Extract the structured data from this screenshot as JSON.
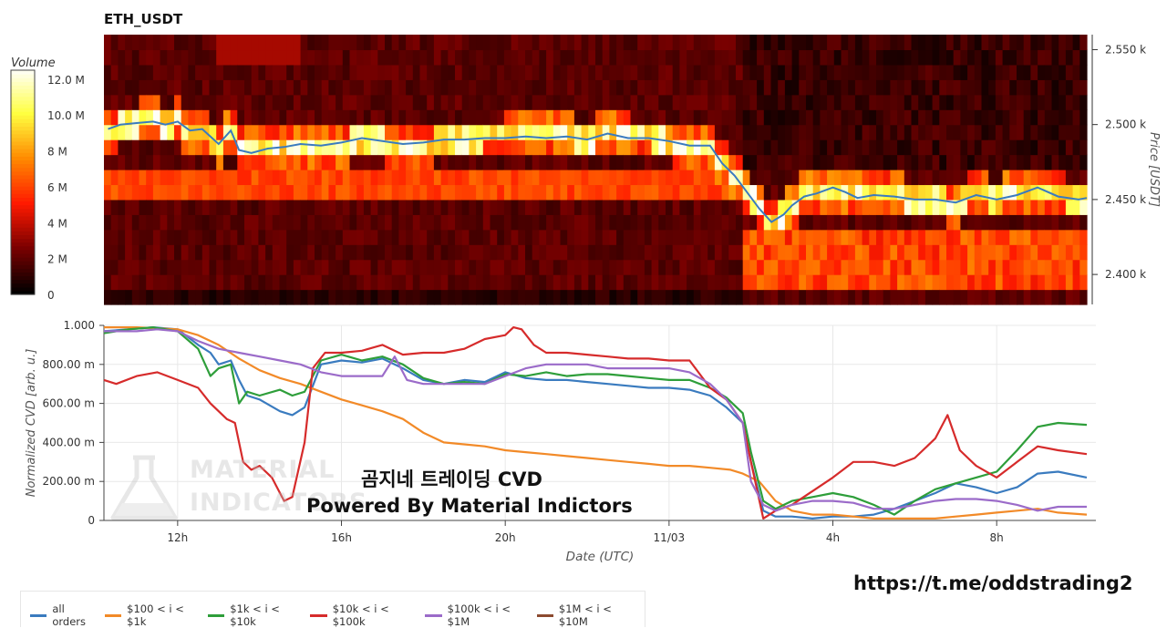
{
  "header": {
    "title": "ETH_USDT"
  },
  "colorbar": {
    "label": "Volume",
    "ticks": [
      "12.0 M",
      "10.0 M",
      "8 M",
      "6 M",
      "4 M",
      "2 M",
      "0"
    ],
    "tick_values": [
      12,
      10,
      8,
      6,
      4,
      2,
      0
    ]
  },
  "overlay": {
    "line1": "곰지네 트레이딩 CVD",
    "line2": "Powered By Material Indictors"
  },
  "watermark": {
    "line1": "MATERIAL",
    "line2": "INDICATORS"
  },
  "link": {
    "text": "https://t.me/oddstrading2"
  },
  "chart_data": [
    {
      "type": "heatmap",
      "title": "ETH_USDT",
      "ylabel": "Price [USDT]",
      "colorbar_label": "Volume",
      "y_ticks": [
        "2.550 k",
        "2.500 k",
        "2.450 k",
        "2.400 k"
      ],
      "y_tick_values": [
        2550,
        2500,
        2450,
        2400
      ],
      "ylim": [
        2380,
        2560
      ],
      "colorscale": [
        "#000000",
        "#7a0000",
        "#ff1a00",
        "#ff8a00",
        "#ffff40",
        "#ffffff"
      ],
      "zlim": [
        0,
        12
      ],
      "price_series": {
        "name": "",
        "color": "#3a7bbf",
        "x": [
          10.3,
          10.6,
          11.0,
          11.4,
          11.7,
          12.0,
          12.3,
          12.6,
          13.0,
          13.3,
          13.5,
          13.8,
          14.2,
          14.6,
          15.0,
          15.5,
          16.0,
          16.5,
          17.0,
          17.5,
          18.0,
          18.5,
          19.0,
          19.5,
          20.0,
          20.5,
          21.0,
          21.5,
          22.0,
          22.5,
          23.0,
          23.5,
          24.0,
          24.5,
          25.0,
          25.3,
          25.6,
          25.9,
          26.2,
          26.5,
          26.8,
          27.0,
          27.3,
          27.6,
          28.0,
          28.3,
          28.6,
          29.0,
          29.5,
          30.0,
          30.5,
          31.0,
          31.5,
          32.0,
          32.5,
          33.0,
          33.5,
          34.0,
          34.2
        ],
        "y": [
          2497,
          2500,
          2501,
          2502,
          2500,
          2502,
          2496,
          2497,
          2487,
          2496,
          2483,
          2481,
          2484,
          2485,
          2487,
          2486,
          2488,
          2491,
          2489,
          2487,
          2488,
          2490,
          2490,
          2491,
          2491,
          2492,
          2491,
          2492,
          2490,
          2494,
          2491,
          2491,
          2489,
          2486,
          2486,
          2474,
          2466,
          2455,
          2444,
          2435,
          2440,
          2446,
          2452,
          2454,
          2458,
          2455,
          2451,
          2453,
          2452,
          2450,
          2450,
          2448,
          2453,
          2450,
          2453,
          2458,
          2452,
          2450,
          2451
        ]
      }
    },
    {
      "type": "line",
      "xlabel": "Date (UTC)",
      "ylabel": "Normalized CVD [arb. u.]",
      "x_ticks": [
        "12h",
        "16h",
        "20h",
        "11/03",
        "4h",
        "8h"
      ],
      "x_tick_values": [
        12,
        16,
        20,
        24,
        28,
        32
      ],
      "xlim": [
        10.2,
        34.2
      ],
      "y_ticks": [
        "1.000",
        "800.00 m",
        "600.00 m",
        "400.00 m",
        "200.00 m",
        "0"
      ],
      "y_tick_values": [
        1.0,
        0.8,
        0.6,
        0.4,
        0.2,
        0.0
      ],
      "ylim": [
        0,
        1.0
      ],
      "legend_position": "bottom",
      "series": [
        {
          "name": "all orders",
          "color": "#3a7bbf",
          "x": [
            10.2,
            10.8,
            11.4,
            12.0,
            12.5,
            12.8,
            13.0,
            13.3,
            13.5,
            13.7,
            14.0,
            14.5,
            14.8,
            15.1,
            15.5,
            16.0,
            16.5,
            17.0,
            17.5,
            18.0,
            18.5,
            19.0,
            19.5,
            20.0,
            20.5,
            21.0,
            21.5,
            22.0,
            22.5,
            23.0,
            23.5,
            24.0,
            24.5,
            25.0,
            25.4,
            25.8,
            26.0,
            26.3,
            26.6,
            27.0,
            27.5,
            28.0,
            28.5,
            29.0,
            29.5,
            30.0,
            30.5,
            31.0,
            31.5,
            32.0,
            32.5,
            33.0,
            33.5,
            34.2
          ],
          "y": [
            0.97,
            0.98,
            0.99,
            0.98,
            0.9,
            0.86,
            0.8,
            0.82,
            0.72,
            0.64,
            0.62,
            0.56,
            0.54,
            0.58,
            0.8,
            0.82,
            0.81,
            0.83,
            0.78,
            0.72,
            0.7,
            0.72,
            0.71,
            0.76,
            0.73,
            0.72,
            0.72,
            0.71,
            0.7,
            0.69,
            0.68,
            0.68,
            0.67,
            0.64,
            0.58,
            0.5,
            0.3,
            0.05,
            0.02,
            0.02,
            0.01,
            0.02,
            0.02,
            0.03,
            0.06,
            0.1,
            0.14,
            0.19,
            0.17,
            0.14,
            0.17,
            0.24,
            0.25,
            0.22
          ]
        },
        {
          "name": "$100 < i < $1k",
          "color": "#f28a28",
          "x": [
            10.2,
            11.0,
            12.0,
            12.5,
            13.0,
            13.5,
            14.0,
            14.5,
            15.0,
            15.5,
            16.0,
            16.5,
            17.0,
            17.5,
            18.0,
            18.5,
            19.0,
            19.5,
            20.0,
            20.5,
            21.0,
            21.5,
            22.0,
            22.5,
            23.0,
            23.5,
            24.0,
            24.5,
            25.0,
            25.5,
            25.8,
            26.2,
            26.6,
            27.0,
            27.5,
            28.0,
            28.5,
            29.0,
            29.5,
            30.0,
            30.5,
            31.0,
            31.5,
            32.0,
            32.5,
            33.0,
            33.5,
            34.2
          ],
          "y": [
            0.99,
            0.99,
            0.98,
            0.95,
            0.9,
            0.83,
            0.77,
            0.73,
            0.7,
            0.66,
            0.62,
            0.59,
            0.56,
            0.52,
            0.45,
            0.4,
            0.39,
            0.38,
            0.36,
            0.35,
            0.34,
            0.33,
            0.32,
            0.31,
            0.3,
            0.29,
            0.28,
            0.28,
            0.27,
            0.26,
            0.24,
            0.2,
            0.1,
            0.05,
            0.03,
            0.03,
            0.02,
            0.01,
            0.01,
            0.01,
            0.01,
            0.02,
            0.03,
            0.04,
            0.05,
            0.06,
            0.04,
            0.03
          ]
        },
        {
          "name": "$1k < i < $10k",
          "color": "#2e9e3a",
          "x": [
            10.2,
            10.8,
            11.4,
            12.0,
            12.5,
            12.8,
            13.0,
            13.3,
            13.5,
            13.7,
            14.0,
            14.5,
            14.8,
            15.1,
            15.5,
            16.0,
            16.5,
            17.0,
            17.5,
            18.0,
            18.5,
            19.0,
            19.5,
            20.0,
            20.5,
            21.0,
            21.5,
            22.0,
            22.5,
            23.0,
            23.5,
            24.0,
            24.5,
            25.0,
            25.4,
            25.8,
            26.0,
            26.3,
            26.6,
            27.0,
            27.5,
            28.0,
            28.5,
            29.0,
            29.5,
            30.0,
            30.5,
            31.0,
            31.5,
            32.0,
            32.5,
            33.0,
            33.5,
            34.2
          ],
          "y": [
            0.96,
            0.98,
            0.99,
            0.97,
            0.88,
            0.74,
            0.78,
            0.8,
            0.6,
            0.66,
            0.64,
            0.67,
            0.64,
            0.66,
            0.82,
            0.85,
            0.82,
            0.84,
            0.8,
            0.73,
            0.7,
            0.71,
            0.7,
            0.75,
            0.74,
            0.76,
            0.74,
            0.75,
            0.75,
            0.74,
            0.73,
            0.72,
            0.72,
            0.68,
            0.63,
            0.55,
            0.35,
            0.1,
            0.06,
            0.1,
            0.12,
            0.14,
            0.12,
            0.08,
            0.03,
            0.1,
            0.16,
            0.19,
            0.22,
            0.25,
            0.36,
            0.48,
            0.5,
            0.49
          ]
        },
        {
          "name": "$10k < i < $100k",
          "color": "#d62b2b",
          "x": [
            10.2,
            10.5,
            11.0,
            11.5,
            12.0,
            12.5,
            12.8,
            13.2,
            13.4,
            13.6,
            13.8,
            14.0,
            14.3,
            14.6,
            14.8,
            15.1,
            15.3,
            15.6,
            16.0,
            16.5,
            17.0,
            17.5,
            18.0,
            18.5,
            19.0,
            19.5,
            20.0,
            20.2,
            20.4,
            20.7,
            21.0,
            21.5,
            22.0,
            22.5,
            23.0,
            23.5,
            24.0,
            24.5,
            25.0,
            25.4,
            25.8,
            26.0,
            26.3,
            26.6,
            27.0,
            27.5,
            28.0,
            28.5,
            29.0,
            29.5,
            30.0,
            30.5,
            30.8,
            31.1,
            31.5,
            32.0,
            32.5,
            33.0,
            33.5,
            34.2
          ],
          "y": [
            0.72,
            0.7,
            0.74,
            0.76,
            0.72,
            0.68,
            0.6,
            0.52,
            0.5,
            0.3,
            0.26,
            0.28,
            0.22,
            0.1,
            0.12,
            0.4,
            0.78,
            0.86,
            0.86,
            0.87,
            0.9,
            0.85,
            0.86,
            0.86,
            0.88,
            0.93,
            0.95,
            0.99,
            0.98,
            0.9,
            0.86,
            0.86,
            0.85,
            0.84,
            0.83,
            0.83,
            0.82,
            0.82,
            0.68,
            0.62,
            0.5,
            0.3,
            0.01,
            0.05,
            0.08,
            0.15,
            0.22,
            0.3,
            0.3,
            0.28,
            0.32,
            0.42,
            0.54,
            0.36,
            0.28,
            0.22,
            0.3,
            0.38,
            0.36,
            0.34
          ]
        },
        {
          "name": "$100k < i < $1M",
          "color": "#9b6bc9",
          "x": [
            10.2,
            11.0,
            11.5,
            12.0,
            12.5,
            13.0,
            13.5,
            14.0,
            14.5,
            15.0,
            15.5,
            16.0,
            16.5,
            17.0,
            17.3,
            17.6,
            18.0,
            18.5,
            19.0,
            19.5,
            20.0,
            20.5,
            21.0,
            21.5,
            22.0,
            22.5,
            23.0,
            23.5,
            24.0,
            24.5,
            25.0,
            25.4,
            25.8,
            26.0,
            26.3,
            26.6,
            27.0,
            27.5,
            28.0,
            28.5,
            29.0,
            29.5,
            30.0,
            30.5,
            31.0,
            31.5,
            32.0,
            32.5,
            33.0,
            33.5,
            34.2
          ],
          "y": [
            0.97,
            0.97,
            0.98,
            0.97,
            0.92,
            0.88,
            0.86,
            0.84,
            0.82,
            0.8,
            0.76,
            0.74,
            0.74,
            0.74,
            0.84,
            0.72,
            0.7,
            0.7,
            0.7,
            0.7,
            0.74,
            0.78,
            0.8,
            0.8,
            0.8,
            0.78,
            0.78,
            0.78,
            0.78,
            0.76,
            0.7,
            0.62,
            0.5,
            0.2,
            0.08,
            0.05,
            0.08,
            0.1,
            0.1,
            0.09,
            0.06,
            0.06,
            0.08,
            0.1,
            0.11,
            0.11,
            0.1,
            0.08,
            0.05,
            0.07,
            0.07
          ]
        },
        {
          "name": "$1M < i < $10M",
          "color": "#8c4a2f",
          "x": [],
          "y": []
        }
      ]
    }
  ]
}
